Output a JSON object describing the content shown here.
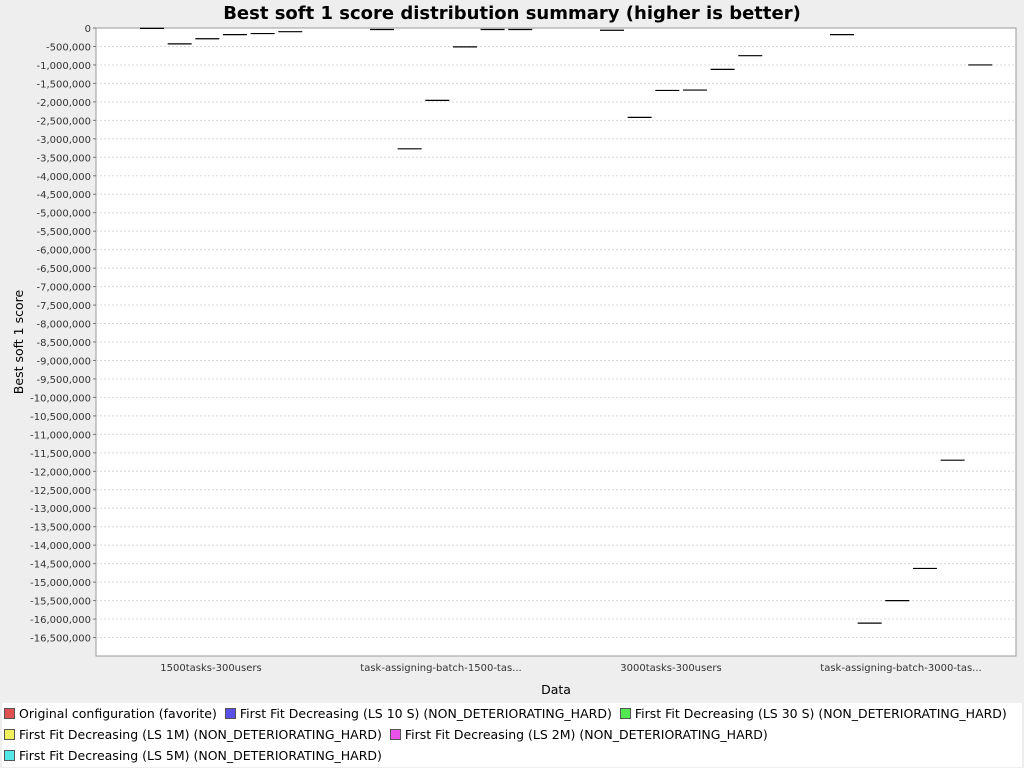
{
  "chart_data": {
    "type": "box",
    "title": "Best soft 1 score distribution summary (higher is better)",
    "xlabel": "Data",
    "ylabel": "Best soft 1 score",
    "ylim": [
      -17000000,
      0
    ],
    "ytick_step": 500000,
    "grid": true,
    "legend_position": "bottom",
    "categories": [
      "1500tasks-300users",
      "task-assigning-batch-1500-tas...",
      "3000tasks-300users",
      "task-assigning-batch-3000-tas..."
    ],
    "series": [
      {
        "name": "Original configuration (favorite)",
        "color": "#e0524f",
        "values": [
          -10000,
          -40000,
          -60000,
          -180000
        ]
      },
      {
        "name": "First Fit Decreasing (LS 10 S) (NON_DETERIORATING_HARD)",
        "color": "#5a52e8",
        "values": [
          -430000,
          -3270000,
          -2420000,
          -16110000
        ]
      },
      {
        "name": "First Fit Decreasing (LS 30 S) (NON_DETERIORATING_HARD)",
        "color": "#52e852",
        "values": [
          -290000,
          -1960000,
          -1690000,
          -15500000
        ]
      },
      {
        "name": "First Fit Decreasing (LS 1M) (NON_DETERIORATING_HARD)",
        "color": "#f0f05a",
        "values": [
          -180000,
          -510000,
          -1680000,
          -14630000
        ]
      },
      {
        "name": "First Fit Decreasing (LS 2M) (NON_DETERIORATING_HARD)",
        "color": "#e852e8",
        "values": [
          -150000,
          -40000,
          -1120000,
          -11700000
        ]
      },
      {
        "name": "First Fit Decreasing (LS 5M) (NON_DETERIORATING_HARD)",
        "color": "#52e8e8",
        "values": [
          -100000,
          -40000,
          -750000,
          -1000000
        ]
      }
    ]
  },
  "legend_rows": [
    [
      0,
      1,
      2
    ],
    [
      3,
      4
    ],
    [
      5
    ]
  ]
}
